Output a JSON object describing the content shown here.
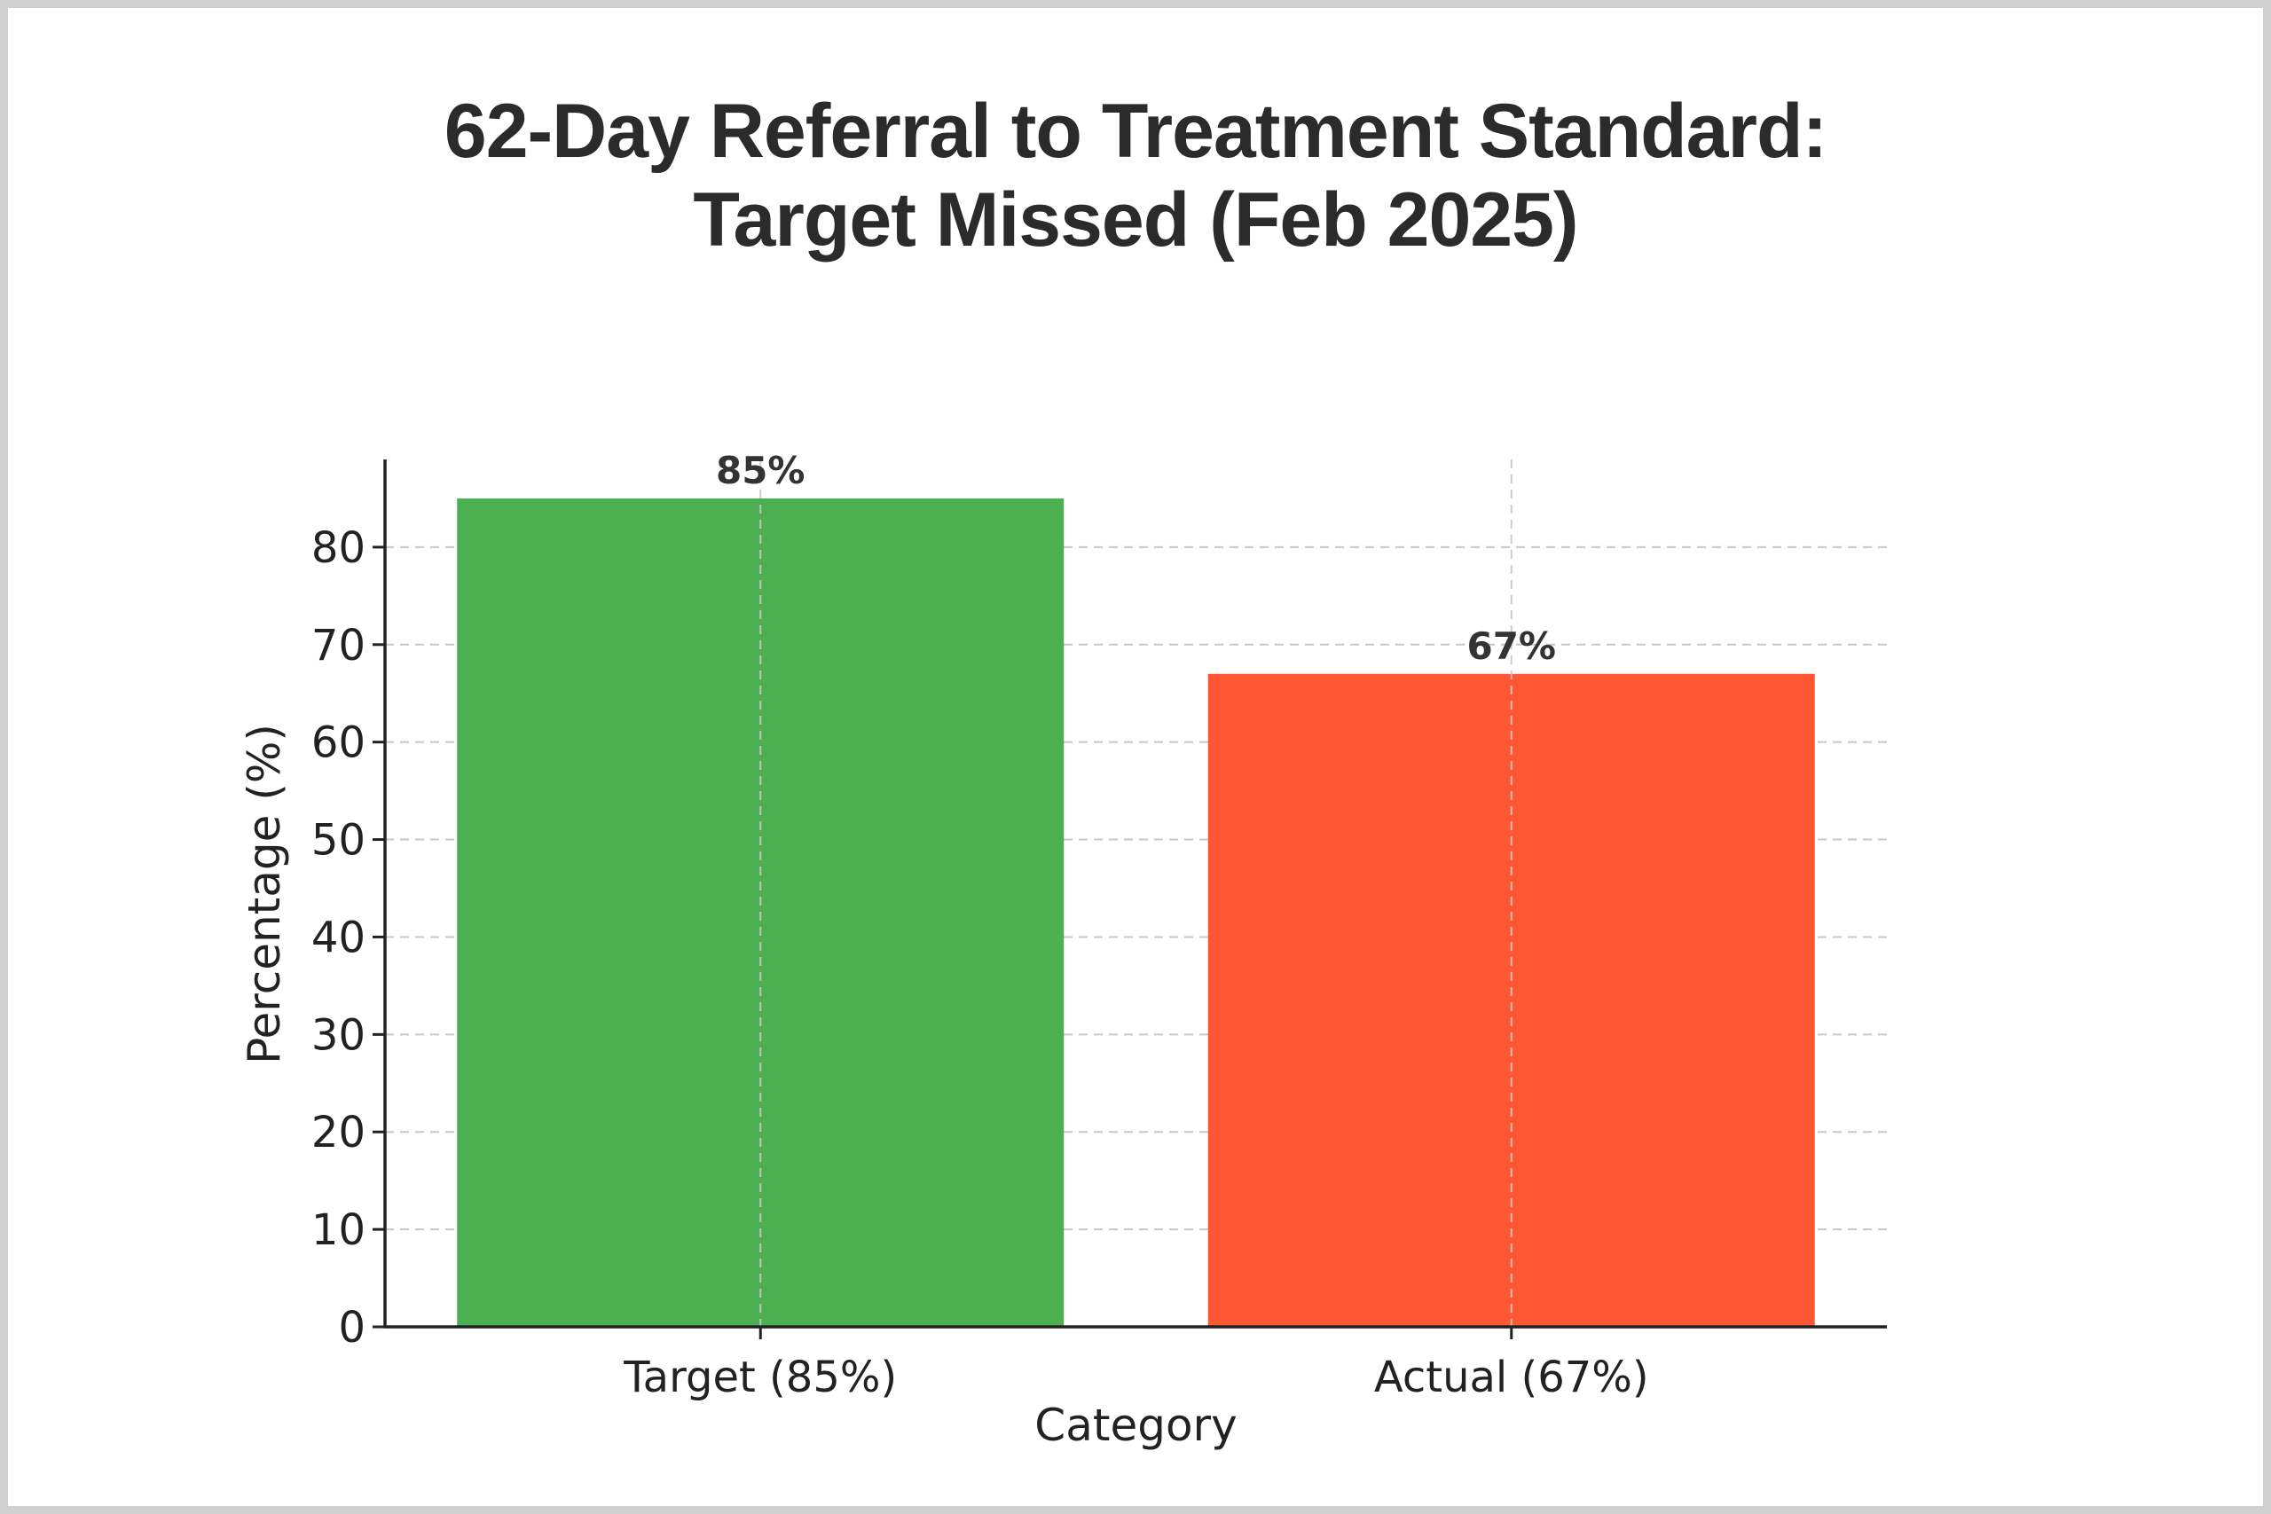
{
  "title_lines": [
    "62-Day Referral to Treatment Standard:",
    "Target Missed (Feb 2025)"
  ],
  "chart_data": {
    "type": "bar",
    "title": "62-Day Referral to Treatment Standard: Target Missed (Feb 2025)",
    "categories": [
      "Target (85%)",
      "Actual (67%)"
    ],
    "values": [
      85,
      67
    ],
    "data_labels": [
      "85%",
      "67%"
    ],
    "colors": [
      "#4caf50",
      "#ff5733"
    ],
    "xlabel": "Category",
    "ylabel": "Percentage (%)",
    "ylim": [
      0,
      89
    ],
    "yticks": [
      0,
      10,
      20,
      30,
      40,
      50,
      60,
      70,
      80
    ],
    "grid": true,
    "legend": "none"
  }
}
